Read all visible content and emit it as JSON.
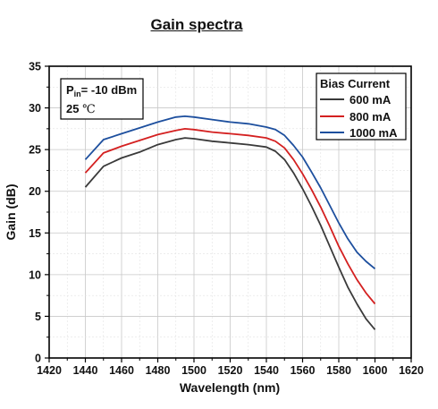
{
  "chart_data": {
    "type": "line",
    "title": "Gain spectra",
    "xlabel": "Wavelength (nm)",
    "ylabel": "Gain (dB)",
    "xlim": [
      1420,
      1620
    ],
    "ylim": [
      0,
      35
    ],
    "xticks": [
      1420,
      1440,
      1460,
      1480,
      1500,
      1520,
      1540,
      1560,
      1580,
      1600,
      1620
    ],
    "yticks": [
      0,
      5,
      10,
      15,
      20,
      25,
      30,
      35
    ],
    "grid": true,
    "legend": {
      "title": "Bias Current",
      "placement": "top-right"
    },
    "annotation": {
      "p_main": "P",
      "p_sub": "in",
      "p_value": "= -10 dBm",
      "temp_value": "25 ",
      "temp_unit": "℃"
    },
    "x": [
      1440,
      1450,
      1460,
      1470,
      1480,
      1490,
      1495,
      1500,
      1510,
      1520,
      1530,
      1540,
      1545,
      1550,
      1555,
      1560,
      1565,
      1570,
      1575,
      1580,
      1585,
      1590,
      1595,
      1600
    ],
    "series": [
      {
        "name": "600 mA",
        "color": "#3a3a3a",
        "values": [
          20.5,
          23.0,
          24.0,
          24.7,
          25.6,
          26.2,
          26.4,
          26.3,
          26.0,
          25.8,
          25.6,
          25.3,
          24.8,
          23.8,
          22.2,
          20.3,
          18.2,
          15.9,
          13.4,
          10.9,
          8.5,
          6.5,
          4.7,
          3.4
        ]
      },
      {
        "name": "800 mA",
        "color": "#d42020",
        "values": [
          22.2,
          24.6,
          25.4,
          26.1,
          26.8,
          27.3,
          27.5,
          27.4,
          27.1,
          26.9,
          26.7,
          26.4,
          26.0,
          25.2,
          23.8,
          22.1,
          20.2,
          18.1,
          15.8,
          13.4,
          11.3,
          9.4,
          7.8,
          6.5
        ]
      },
      {
        "name": "1000 mA",
        "color": "#1d4f9e",
        "values": [
          23.8,
          26.2,
          26.9,
          27.6,
          28.3,
          28.9,
          29.0,
          28.9,
          28.6,
          28.3,
          28.1,
          27.7,
          27.4,
          26.7,
          25.5,
          24.1,
          22.3,
          20.4,
          18.3,
          16.2,
          14.3,
          12.7,
          11.6,
          10.7
        ]
      }
    ]
  }
}
